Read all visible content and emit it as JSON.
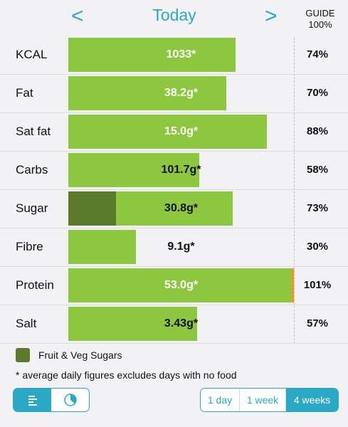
{
  "header": {
    "title": "Today",
    "prev": "<",
    "next": ">",
    "guide_label": "GUIDE",
    "guide_value": "100%"
  },
  "bar_color": "#8dc63f",
  "rows": [
    {
      "label": "KCAL",
      "amount": "1033*",
      "percent": 74,
      "percent_label": "74%",
      "text_color": "#ffffff"
    },
    {
      "label": "Fat",
      "amount": "38.2g*",
      "percent": 70,
      "percent_label": "70%",
      "text_color": "#ffffff"
    },
    {
      "label": "Sat fat",
      "amount": "15.0g*",
      "percent": 88,
      "percent_label": "88%",
      "text_color": "#ffffff"
    },
    {
      "label": "Carbs",
      "amount": "101.7g*",
      "percent": 58,
      "percent_label": "58%",
      "text_color": "#111111"
    },
    {
      "label": "Sugar",
      "amount": "30.8g*",
      "percent": 73,
      "percent_label": "73%",
      "text_color": "#111111",
      "fruit_veg_percent": 21,
      "fruit_veg_color": "#5b7a2c"
    },
    {
      "label": "Fibre",
      "amount": "9.1g*",
      "percent": 30,
      "percent_label": "30%",
      "text_color": "#111111"
    },
    {
      "label": "Protein",
      "amount": "53.0g*",
      "percent": 101,
      "percent_label": "101%",
      "text_color": "#ffffff",
      "over_color": "#f7941d"
    },
    {
      "label": "Salt",
      "amount": "3.43g*",
      "percent": 57,
      "percent_label": "57%",
      "text_color": "#111111"
    }
  ],
  "legend": {
    "label": "Fruit & Veg Sugars",
    "color": "#5b7a2c"
  },
  "footnote": "* average daily figures excludes days with no food",
  "periods": {
    "options": [
      "1 day",
      "1 week",
      "4 weeks"
    ],
    "selected": 2
  }
}
